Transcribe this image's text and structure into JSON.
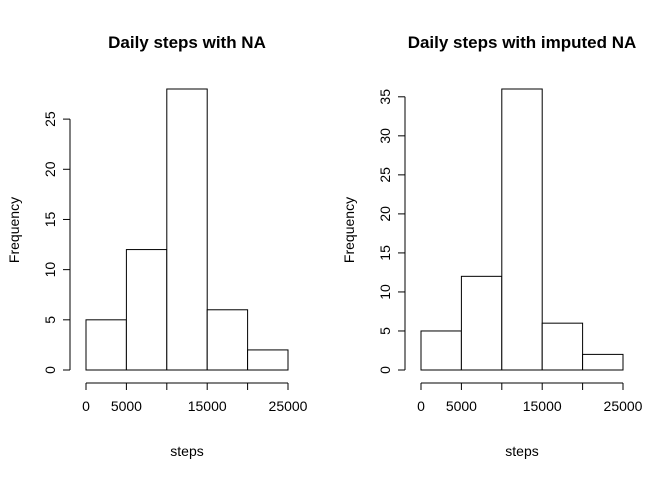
{
  "chart_data": [
    {
      "type": "bar",
      "title": "Daily steps with NA",
      "xlabel": "steps",
      "ylabel": "Frequency",
      "bins": [
        [
          0,
          5000
        ],
        [
          5000,
          10000
        ],
        [
          10000,
          15000
        ],
        [
          15000,
          20000
        ],
        [
          20000,
          25000
        ]
      ],
      "values": [
        5,
        12,
        28,
        6,
        2
      ],
      "xlim": [
        0,
        25000
      ],
      "ylim": [
        0,
        28
      ],
      "x_ticks": [
        0,
        5000,
        15000,
        25000
      ],
      "x_ticks_extra": [
        10000,
        20000
      ],
      "y_ticks": [
        0,
        5,
        10,
        15,
        20,
        25
      ],
      "grid": false
    },
    {
      "type": "bar",
      "title": "Daily steps with imputed NA",
      "xlabel": "steps",
      "ylabel": "Frequency",
      "bins": [
        [
          0,
          5000
        ],
        [
          5000,
          10000
        ],
        [
          10000,
          15000
        ],
        [
          15000,
          20000
        ],
        [
          20000,
          25000
        ]
      ],
      "values": [
        5,
        12,
        36,
        6,
        2
      ],
      "xlim": [
        0,
        25000
      ],
      "ylim": [
        0,
        36
      ],
      "x_ticks": [
        0,
        5000,
        15000,
        25000
      ],
      "x_ticks_extra": [
        10000,
        20000
      ],
      "y_ticks": [
        0,
        5,
        10,
        15,
        20,
        25,
        30,
        35
      ],
      "grid": false
    }
  ]
}
